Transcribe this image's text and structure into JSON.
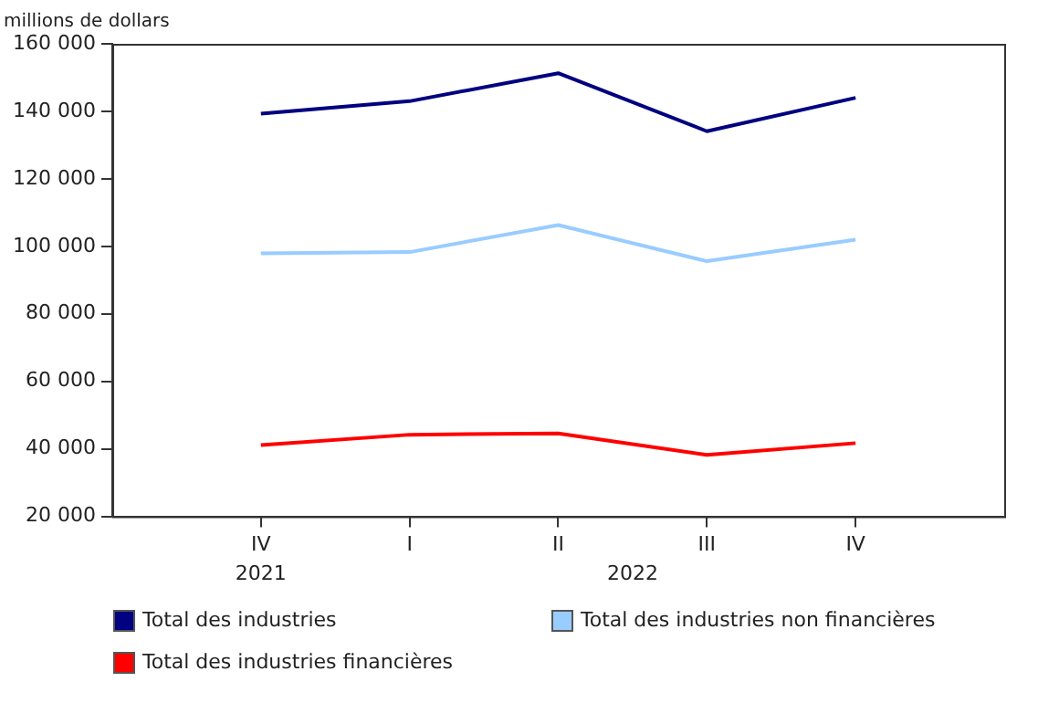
{
  "chart_data": {
    "type": "line",
    "ylabel": "millions de dollars",
    "categories": [
      "IV",
      "I",
      "II",
      "III",
      "IV"
    ],
    "annotations": [
      "2021",
      "2022"
    ],
    "series": [
      {
        "name": "Total des industries",
        "color": "#000080",
        "values": [
          139300,
          143000,
          151300,
          134100,
          144000
        ]
      },
      {
        "name": "Total des industries non financières",
        "color": "#99ccff",
        "values": [
          97900,
          98300,
          106300,
          95600,
          102000
        ]
      },
      {
        "name": "Total des industries financières",
        "color": "#ff0000",
        "values": [
          41100,
          44200,
          44600,
          38200,
          41700
        ]
      }
    ],
    "ylim": [
      20000,
      160000
    ],
    "yticks": [
      {
        "value": 20000,
        "label": "20 000"
      },
      {
        "value": 40000,
        "label": "40 000"
      },
      {
        "value": 60000,
        "label": "60 000"
      },
      {
        "value": 80000,
        "label": "80 000"
      },
      {
        "value": 100000,
        "label": "100 000"
      },
      {
        "value": 120000,
        "label": "120 000"
      },
      {
        "value": 140000,
        "label": "140 000"
      },
      {
        "value": 160000,
        "label": "160 000"
      }
    ],
    "grid": false,
    "legend": "bottom",
    "marker": "none",
    "line_style": "solid"
  }
}
